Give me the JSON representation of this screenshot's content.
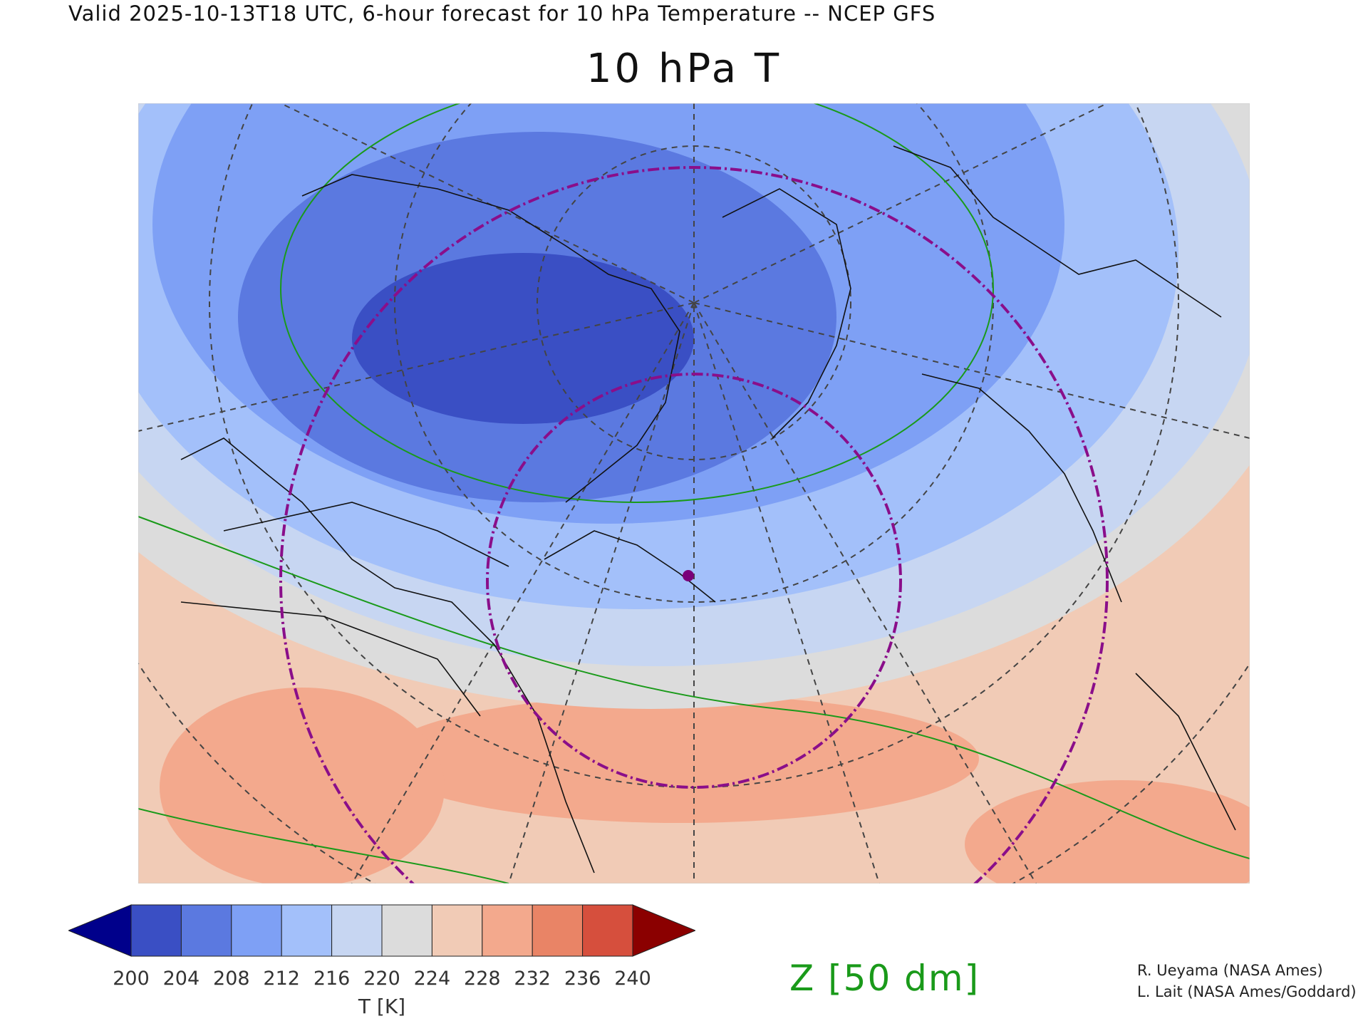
{
  "header": "Valid 2025-10-13T18 UTC, 6-hour forecast for 10 hPa Temperature -- NCEP GFS",
  "title": "10 hPa T",
  "colorbar": {
    "label": "T [K]",
    "ticks": [
      "200",
      "204",
      "208",
      "212",
      "216",
      "220",
      "224",
      "228",
      "232",
      "236",
      "240"
    ],
    "colors": [
      "#00008b",
      "#3a4fc4",
      "#5b79e0",
      "#7ea0f5",
      "#a3c0fa",
      "#c7d6f2",
      "#dcdcdc",
      "#f1cbb6",
      "#f3a98d",
      "#e98466",
      "#d64f3d",
      "#8b0000"
    ]
  },
  "contour_label": "Z [50 dm]",
  "contour_color": "#1a9a1a",
  "vortex_edge_color": "#8a0e8a",
  "credits": [
    "R. Ueyama (NASA Ames)",
    "L. Lait (NASA Ames/Goddard)"
  ]
}
